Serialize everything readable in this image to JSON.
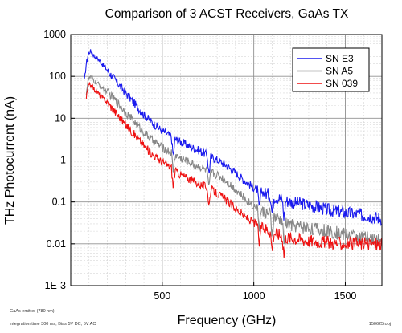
{
  "chart_data": {
    "type": "line",
    "title": "Comparison of 3 ACST Receivers, GaAs TX",
    "xlabel": "Frequency (GHz)",
    "ylabel": "THz Photocurrent (nA)",
    "xlim": [
      0,
      1700
    ],
    "ylim": [
      0.001,
      1000
    ],
    "yscale": "log",
    "x_ticks": [
      {
        "value": 500,
        "label": "500"
      },
      {
        "value": 1000,
        "label": "1000"
      },
      {
        "value": 1500,
        "label": "1500"
      }
    ],
    "y_ticks": [
      {
        "value": 1000,
        "label": "1000"
      },
      {
        "value": 100,
        "label": "100"
      },
      {
        "value": 10,
        "label": "10"
      },
      {
        "value": 1,
        "label": "1"
      },
      {
        "value": 0.1,
        "label": "0.1"
      },
      {
        "value": 0.01,
        "label": "0.01"
      },
      {
        "value": 0.001,
        "label": "1E-3"
      }
    ],
    "grid": true,
    "legend_position": "top-right",
    "series": [
      {
        "name": "SN E3",
        "color": "#1a1aee",
        "x": [
          75,
          85,
          95,
          105,
          115,
          130,
          150,
          175,
          200,
          250,
          300,
          350,
          400,
          450,
          500,
          550,
          600,
          650,
          700,
          750,
          800,
          850,
          900,
          950,
          1000,
          1050,
          1100,
          1150,
          1200,
          1300,
          1400,
          1500,
          1600,
          1700
        ],
        "y": [
          80,
          200,
          330,
          400,
          380,
          300,
          260,
          190,
          140,
          75,
          40,
          22,
          12,
          7.5,
          5,
          3.6,
          2.7,
          2.1,
          1.7,
          1.3,
          1.0,
          0.75,
          0.5,
          0.32,
          0.22,
          0.17,
          0.14,
          0.12,
          0.1,
          0.085,
          0.065,
          0.055,
          0.048,
          0.04
        ]
      },
      {
        "name": "SN A5",
        "color": "#888888",
        "x": [
          85,
          95,
          105,
          115,
          130,
          150,
          175,
          200,
          250,
          300,
          350,
          400,
          450,
          500,
          550,
          600,
          650,
          700,
          750,
          800,
          850,
          900,
          950,
          1000,
          1050,
          1100,
          1150,
          1200,
          1300,
          1400,
          1500,
          1600,
          1700
        ],
        "y": [
          40,
          80,
          95,
          90,
          75,
          65,
          52,
          42,
          25,
          14,
          8,
          4.6,
          2.9,
          2,
          1.5,
          1.1,
          0.88,
          0.7,
          0.55,
          0.45,
          0.32,
          0.2,
          0.12,
          0.08,
          0.06,
          0.045,
          0.035,
          0.028,
          0.024,
          0.02,
          0.017,
          0.014,
          0.012
        ]
      },
      {
        "name": "SN 039",
        "color": "#ee1111",
        "x": [
          85,
          95,
          105,
          115,
          130,
          150,
          175,
          200,
          250,
          300,
          350,
          400,
          450,
          500,
          550,
          600,
          650,
          700,
          750,
          800,
          850,
          900,
          950,
          1000,
          1050,
          1100,
          1150,
          1200,
          1300,
          1400,
          1500,
          1600,
          1700
        ],
        "y": [
          30,
          55,
          65,
          60,
          48,
          40,
          30,
          24,
          13,
          7,
          4,
          2.2,
          1.3,
          0.9,
          0.65,
          0.45,
          0.35,
          0.27,
          0.22,
          0.16,
          0.11,
          0.07,
          0.045,
          0.032,
          0.025,
          0.02,
          0.016,
          0.014,
          0.012,
          0.011,
          0.01,
          0.01,
          0.01
        ]
      }
    ],
    "dips": [
      560,
      755,
      1030,
      1100,
      1165
    ]
  },
  "footer": {
    "line1": "GaAs emitter (780 nm)",
    "line2": "integration time 300 ms, Bias 5V DC, 5V AC",
    "file": "150625.opj"
  }
}
